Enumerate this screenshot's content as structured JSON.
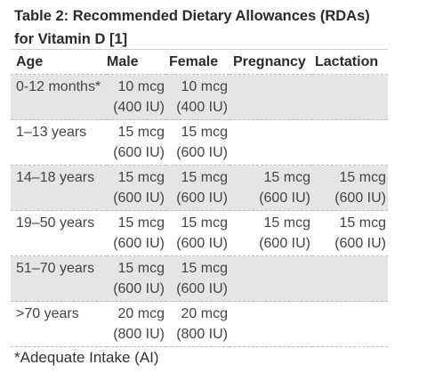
{
  "title_line1": "Table 2: Recommended Dietary Allowances (RDAs)",
  "title_line2": "for Vitamin D [1]",
  "headers": {
    "age": "Age",
    "male": "Male",
    "female": "Female",
    "pregnancy": "Pregnancy",
    "lactation": "Lactation"
  },
  "rows": [
    {
      "age": "0-12 months*",
      "male": {
        "mcg": "10 mcg",
        "iu": "(400 IU)"
      },
      "female": {
        "mcg": "10 mcg",
        "iu": "(400 IU)"
      },
      "pregnancy": {
        "mcg": "",
        "iu": ""
      },
      "lactation": {
        "mcg": "",
        "iu": ""
      }
    },
    {
      "age": "1–13 years",
      "male": {
        "mcg": "15 mcg",
        "iu": "(600 IU)"
      },
      "female": {
        "mcg": "15 mcg",
        "iu": "(600 IU)"
      },
      "pregnancy": {
        "mcg": "",
        "iu": ""
      },
      "lactation": {
        "mcg": "",
        "iu": ""
      }
    },
    {
      "age": "14–18 years",
      "male": {
        "mcg": "15 mcg",
        "iu": "(600 IU)"
      },
      "female": {
        "mcg": "15 mcg",
        "iu": "(600 IU)"
      },
      "pregnancy": {
        "mcg": "15 mcg",
        "iu": "(600 IU)"
      },
      "lactation": {
        "mcg": "15 mcg",
        "iu": "(600 IU)"
      }
    },
    {
      "age": "19–50 years",
      "male": {
        "mcg": "15 mcg",
        "iu": "(600 IU)"
      },
      "female": {
        "mcg": "15 mcg",
        "iu": "(600 IU)"
      },
      "pregnancy": {
        "mcg": "15 mcg",
        "iu": "(600 IU)"
      },
      "lactation": {
        "mcg": "15 mcg",
        "iu": "(600 IU)"
      }
    },
    {
      "age": "51–70 years",
      "male": {
        "mcg": "15 mcg",
        "iu": "(600 IU)"
      },
      "female": {
        "mcg": "15 mcg",
        "iu": "(600 IU)"
      },
      "pregnancy": {
        "mcg": "",
        "iu": ""
      },
      "lactation": {
        "mcg": "",
        "iu": ""
      }
    },
    {
      "age": ">70 years",
      "male": {
        "mcg": "20 mcg",
        "iu": "(800 IU)"
      },
      "female": {
        "mcg": "20 mcg",
        "iu": "(800 IU)"
      },
      "pregnancy": {
        "mcg": "",
        "iu": ""
      },
      "lactation": {
        "mcg": "",
        "iu": ""
      }
    }
  ],
  "footnote": "*Adequate Intake (AI)",
  "colors": {
    "shaded_row": "#e5e5e5",
    "text": "#333333",
    "divider": "#bdbdbd"
  }
}
